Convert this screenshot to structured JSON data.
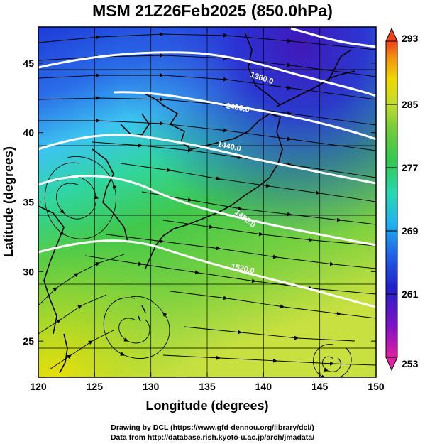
{
  "title": "MSM 21Z26Feb2025 (850.0hPa)",
  "x_axis": {
    "label": "Longitude (degrees)",
    "ticks": [
      120,
      125,
      130,
      135,
      140,
      145,
      150
    ],
    "range": [
      120,
      150
    ]
  },
  "y_axis": {
    "label": "Latitude  (degrees)",
    "ticks": [
      25,
      30,
      35,
      40,
      45
    ],
    "range": [
      22.4,
      47.6
    ]
  },
  "colorbar": {
    "ticks": [
      293,
      285,
      277,
      269,
      261,
      253
    ],
    "range": [
      253,
      293
    ],
    "colors": [
      "#d60b8f",
      "#7a10c4",
      "#3320c8",
      "#1f5ee8",
      "#22b4f0",
      "#28d6b4",
      "#3cd06a",
      "#5ac83c",
      "#a8dc3c",
      "#f0e000",
      "#f8a010",
      "#f04018"
    ]
  },
  "contours": {
    "color": "#ffffff",
    "labels": [
      "1360.0",
      "1400.0",
      "1440.0",
      "1480.0",
      "1520.0"
    ]
  },
  "credits": {
    "line1": "Drawing by DCL (https://www.gfd-dennou.org/library/dcl/)",
    "line2": "Data from http://database.rish.kyoto-u.ac.jp/arch/jmadata/"
  }
}
